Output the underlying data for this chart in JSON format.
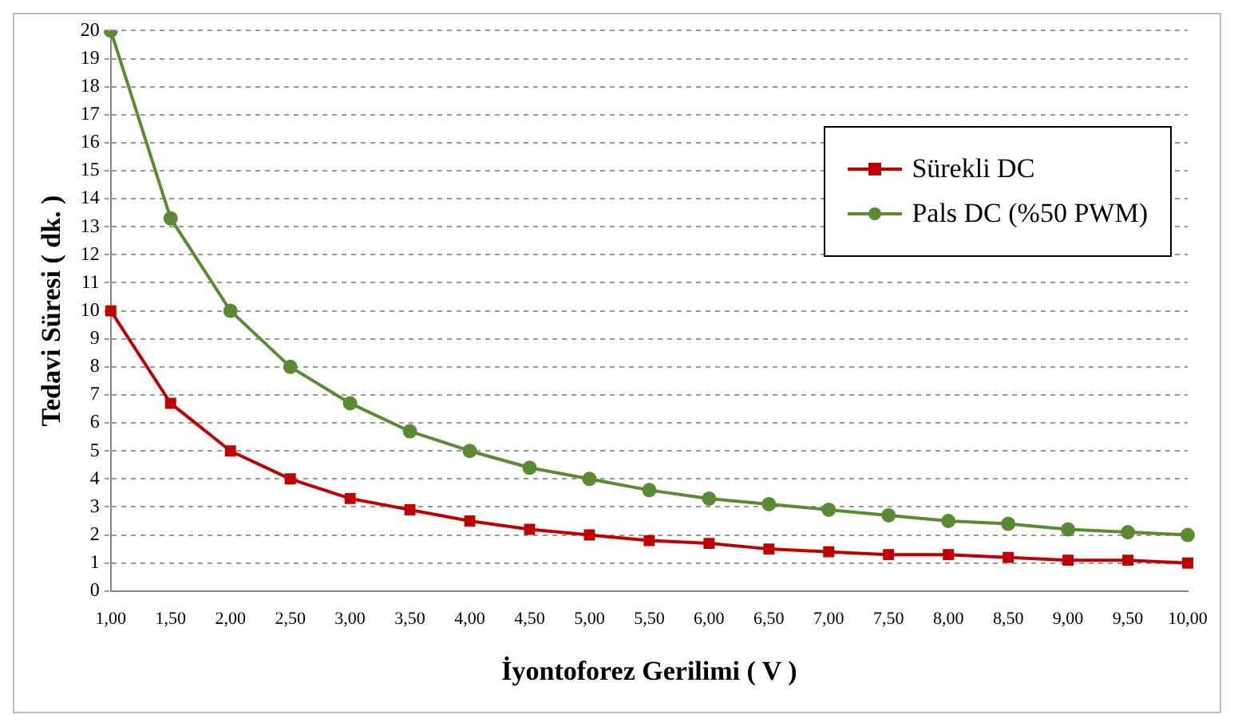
{
  "chart_data": {
    "type": "line",
    "xlabel": "İyontoforez Gerilimi ( V )",
    "ylabel": "Tedavi Süresi ( dk. )",
    "categories": [
      "1,00",
      "1,50",
      "2,00",
      "2,50",
      "3,00",
      "3,50",
      "4,00",
      "4,50",
      "5,00",
      "5,50",
      "6,00",
      "6,50",
      "7,00",
      "7,50",
      "8,00",
      "8,50",
      "9,00",
      "9,50",
      "10,00"
    ],
    "series": [
      {
        "name": "Sürekli DC",
        "color": "#c00000",
        "marker": "square",
        "values": [
          10,
          6.7,
          5,
          4,
          3.3,
          2.9,
          2.5,
          2.2,
          2,
          1.8,
          1.7,
          1.5,
          1.4,
          1.3,
          1.3,
          1.2,
          1.1,
          1.1,
          1
        ]
      },
      {
        "name": "Pals DC (%50 PWM)",
        "color": "#5a8a32",
        "marker": "circle",
        "values": [
          20,
          13.3,
          10,
          8,
          6.7,
          5.7,
          5,
          4.4,
          4,
          3.6,
          3.3,
          3.1,
          2.9,
          2.7,
          2.5,
          2.4,
          2.2,
          2.1,
          2
        ]
      }
    ],
    "ylim": [
      0,
      20
    ],
    "yticks": [
      0,
      1,
      2,
      3,
      4,
      5,
      6,
      7,
      8,
      9,
      10,
      11,
      12,
      13,
      14,
      15,
      16,
      17,
      18,
      19,
      20
    ],
    "grid": "y",
    "legend": "top right",
    "line_style": "solid"
  }
}
